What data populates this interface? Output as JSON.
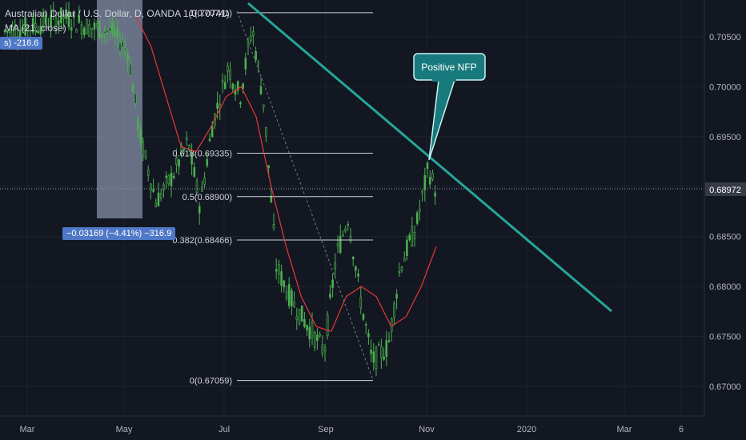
{
  "header": {
    "symbol_line": "Australian Dollar / U.S. Dollar, D, OANDA 1(0.70741)",
    "ma_line": "MA (21, close)"
  },
  "badges": {
    "left_value": "-216.6",
    "left_value_prefix": "s)",
    "measure": "−0.03169 (−4.41%) −316.9"
  },
  "callout": {
    "text": "Positive NFP"
  },
  "fib_levels": [
    {
      "label": "1(0.70741)",
      "price": 0.70741
    },
    {
      "label": "0.618(0.69335)",
      "price": 0.69335
    },
    {
      "label": "0.5(0.68900)",
      "price": 0.689
    },
    {
      "label": "0.382(0.68466)",
      "price": 0.68466
    },
    {
      "label": "0(0.67059)",
      "price": 0.67059
    }
  ],
  "current_price": "0.68972",
  "colors": {
    "background": "#131722",
    "candle": "#4caf50",
    "ma": "#e53935",
    "trendline": "#26a69a",
    "callout": "#187a7d",
    "measure_box": "#aeb9d9",
    "badge": "#4f78c6"
  },
  "chart_data": {
    "type": "line",
    "title": "Australian Dollar / U.S. Dollar, D, OANDA",
    "y_ticks": [
      "0.70500",
      "0.70000",
      "0.69500",
      "0.69000",
      "0.68500",
      "0.68000",
      "0.67500",
      "0.67000"
    ],
    "x_ticks": [
      "Mar",
      "May",
      "Jul",
      "Sep",
      "Nov",
      "2020",
      "Mar",
      "6"
    ],
    "ylim": [
      0.666,
      0.7085
    ],
    "series": [
      {
        "name": "MA (21, close)",
        "values": [
          0.707,
          0.704,
          0.699,
          0.694,
          0.6935,
          0.696,
          0.699,
          0.7,
          0.697,
          0.69,
          0.684,
          0.679,
          0.676,
          0.6755,
          0.679,
          0.68,
          0.679,
          0.676,
          0.677,
          0.68,
          0.684
        ]
      }
    ]
  }
}
